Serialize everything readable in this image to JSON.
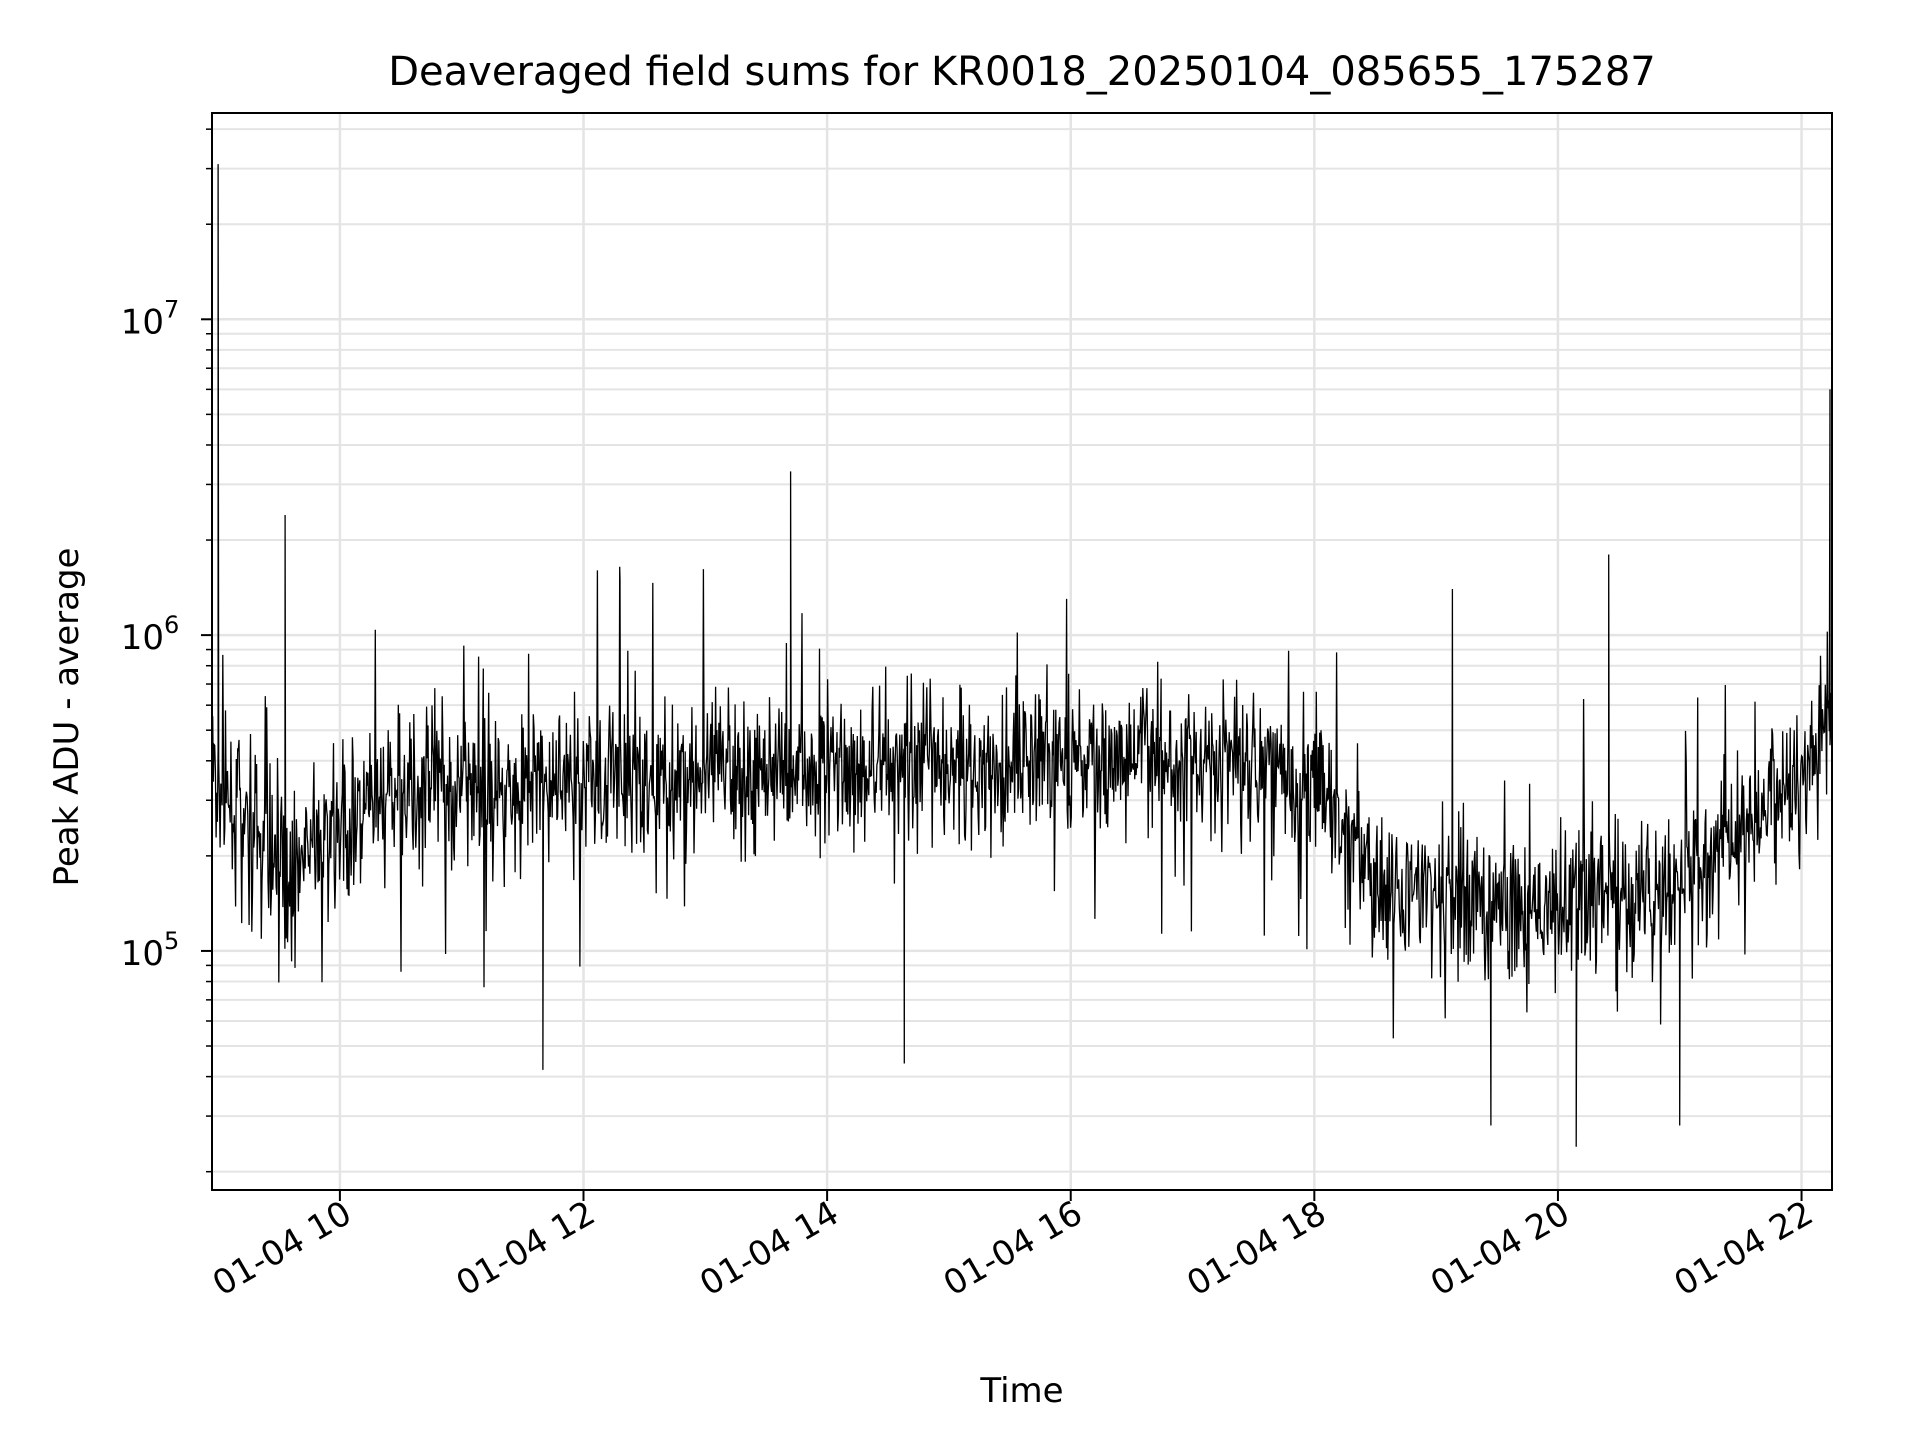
{
  "chart_data": {
    "type": "line",
    "title": "Deaveraged field sums for KR0018_20250104_085655_175287",
    "xlabel": "Time",
    "ylabel": "Peak ADU - average",
    "x_start": "2025-01-04 08:57",
    "x_end": "2025-01-04 22:15",
    "xlim": [
      "2025-01-04 08:57",
      "2025-01-04 22:15"
    ],
    "x_ticks": [
      {
        "label": "01-04 10",
        "hour": 10
      },
      {
        "label": "01-04 12",
        "hour": 12
      },
      {
        "label": "01-04 14",
        "hour": 14
      },
      {
        "label": "01-04 16",
        "hour": 16
      },
      {
        "label": "01-04 18",
        "hour": 18
      },
      {
        "label": "01-04 20",
        "hour": 20
      },
      {
        "label": "01-04 22",
        "hour": 22
      }
    ],
    "yscale": "log",
    "ylim": [
      17500,
      45000000
    ],
    "y_ticks": [
      {
        "base": "10",
        "exp": "5",
        "value": 100000
      },
      {
        "base": "10",
        "exp": "6",
        "value": 1000000
      },
      {
        "base": "10",
        "exp": "7",
        "value": 10000000
      }
    ],
    "grid": true,
    "series": [
      {
        "color": "#000000",
        "values": [
          {
            "t": "2025-01-04 08:57",
            "v": 350000
          },
          {
            "t": "2025-01-04 09:30",
            "v": 180000
          },
          {
            "t": "2025-01-04 10:30",
            "v": 320000
          },
          {
            "t": "2025-01-04 12:00",
            "v": 350000
          },
          {
            "t": "2025-01-04 14:00",
            "v": 380000
          },
          {
            "t": "2025-01-04 16:00",
            "v": 400000
          },
          {
            "t": "2025-01-04 17:45",
            "v": 420000
          },
          {
            "t": "2025-01-04 18:30",
            "v": 170000
          },
          {
            "t": "2025-01-04 19:30",
            "v": 130000
          },
          {
            "t": "2025-01-04 21:00",
            "v": 150000
          },
          {
            "t": "2025-01-04 21:45",
            "v": 300000
          },
          {
            "t": "2025-01-04 22:15",
            "v": 550000
          }
        ],
        "spikes": [
          {
            "t": "2025-01-04 09:00",
            "v": 31000000
          },
          {
            "t": "2025-01-04 09:33",
            "v": 2400000
          },
          {
            "t": "2025-01-04 12:18",
            "v": 1500000
          },
          {
            "t": "2025-01-04 13:42",
            "v": 3300000
          },
          {
            "t": "2025-01-04 19:08",
            "v": 1400000
          },
          {
            "t": "2025-01-04 20:25",
            "v": 1800000
          },
          {
            "t": "2025-01-04 22:14",
            "v": 6000000
          },
          {
            "t": "2025-01-04 11:40",
            "v": 42000
          },
          {
            "t": "2025-01-04 14:38",
            "v": 44000
          },
          {
            "t": "2025-01-04 19:27",
            "v": 28000
          },
          {
            "t": "2025-01-04 20:09",
            "v": 24000
          },
          {
            "t": "2025-01-04 21:00",
            "v": 28000
          }
        ]
      }
    ]
  }
}
